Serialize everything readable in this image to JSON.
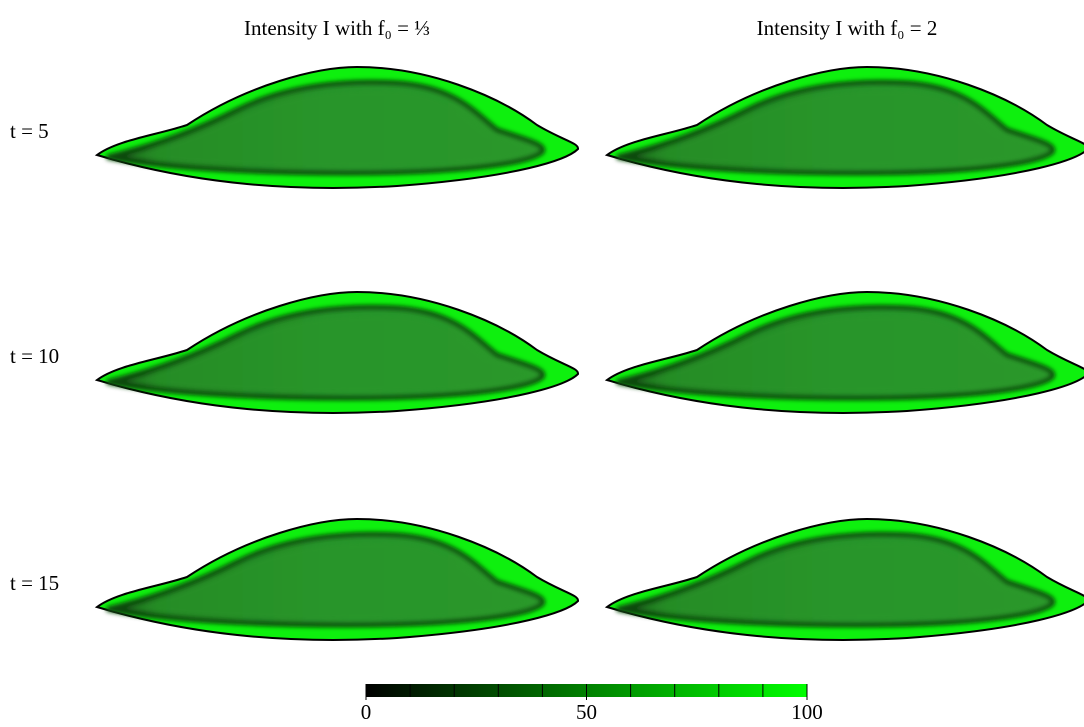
{
  "columns": [
    "Intensity I with f₀ = ⅓",
    "Intensity I with f₀ = 2"
  ],
  "rows": [
    "t = 5",
    "t = 10",
    "t = 15"
  ],
  "colorbar": {
    "range": [
      0,
      100
    ],
    "ticks": [
      0,
      50,
      100
    ]
  }
}
